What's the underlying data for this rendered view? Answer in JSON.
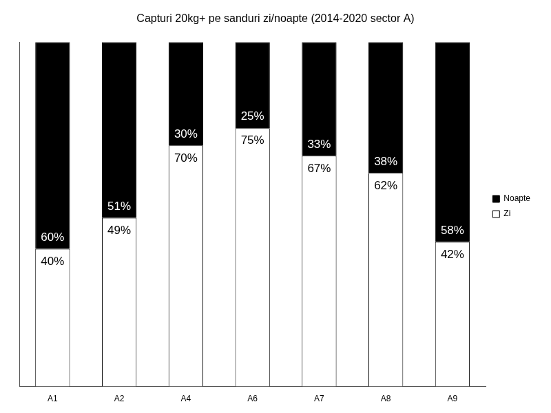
{
  "chart_data": {
    "type": "bar",
    "title": "Capturi 20kg+ pe sanduri zi/noapte (2014-2020 sector A)",
    "categories": [
      "A1",
      "A2",
      "A4",
      "A6",
      "A7",
      "A8",
      "A9"
    ],
    "series": [
      {
        "name": "Zi",
        "color": "#ffffff",
        "values": [
          40,
          49,
          70,
          75,
          67,
          62,
          42
        ],
        "value_labels": [
          "40%",
          "49%",
          "70%",
          "75%",
          "67%",
          "62%",
          "42%"
        ]
      },
      {
        "name": "Noapte",
        "color": "#000000",
        "values": [
          60,
          51,
          30,
          25,
          33,
          38,
          58
        ],
        "value_labels": [
          "60%",
          "51%",
          "30%",
          "25%",
          "33%",
          "38%",
          "58%"
        ]
      }
    ],
    "ylim": [
      0,
      100
    ],
    "stacked": true,
    "data_labels": true,
    "legend": "right",
    "grid": false,
    "tick_labels": "x"
  }
}
